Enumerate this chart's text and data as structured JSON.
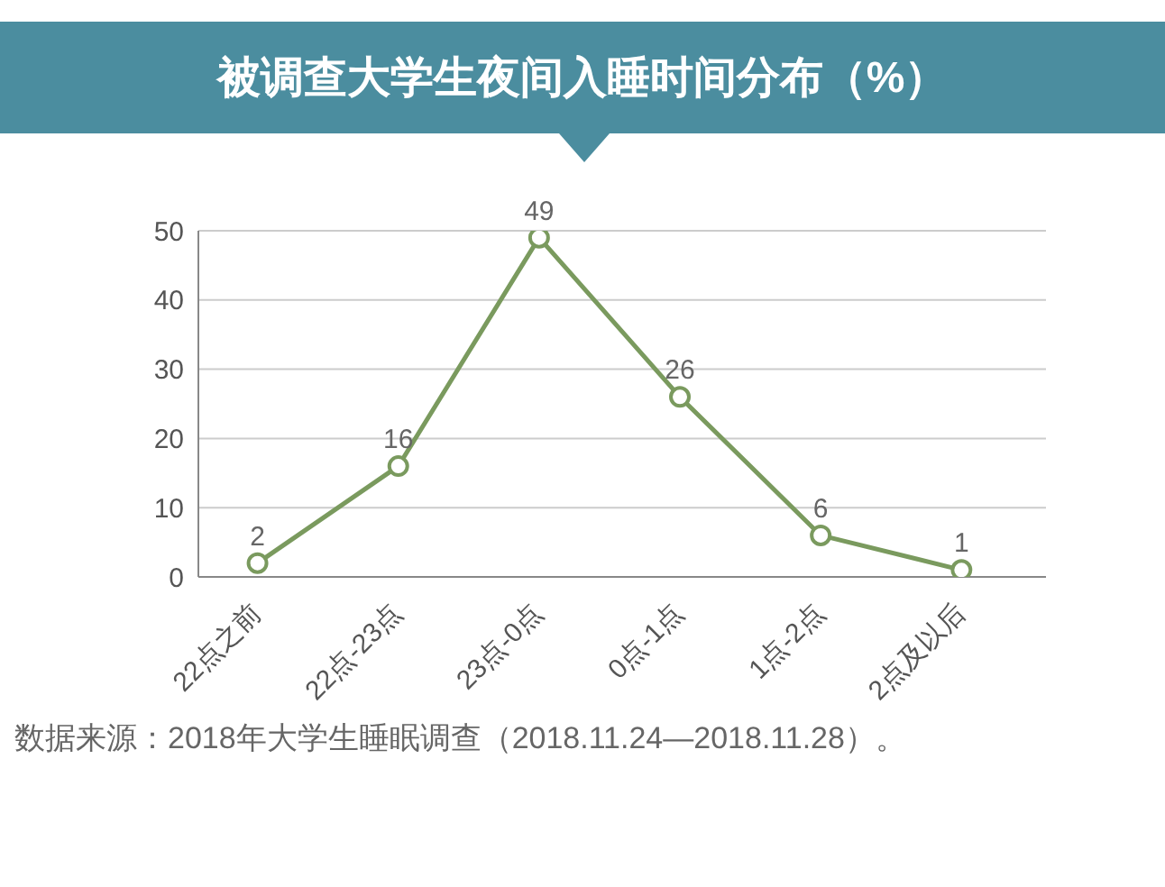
{
  "chart_data": {
    "type": "line",
    "title": "被调查大学生夜间入睡时间分布（%）",
    "categories": [
      "22点之前",
      "22点-23点",
      "23点-0点",
      "0点-1点",
      "1点-2点",
      "2点及以后"
    ],
    "series": [
      {
        "color": "#7a9a5e",
        "values": [
          2,
          16,
          49,
          26,
          6,
          1
        ]
      }
    ],
    "ylim": [
      0,
      50
    ],
    "yticks": [
      0,
      10,
      20,
      30,
      40,
      50
    ],
    "grid": "y",
    "marker": "circle",
    "line_style": "solid",
    "data_labels": true,
    "legend": false,
    "annotations": [
      "数据来源：2018年大学生睡眠调查（2018.11.24—2018.11.28）。"
    ]
  }
}
